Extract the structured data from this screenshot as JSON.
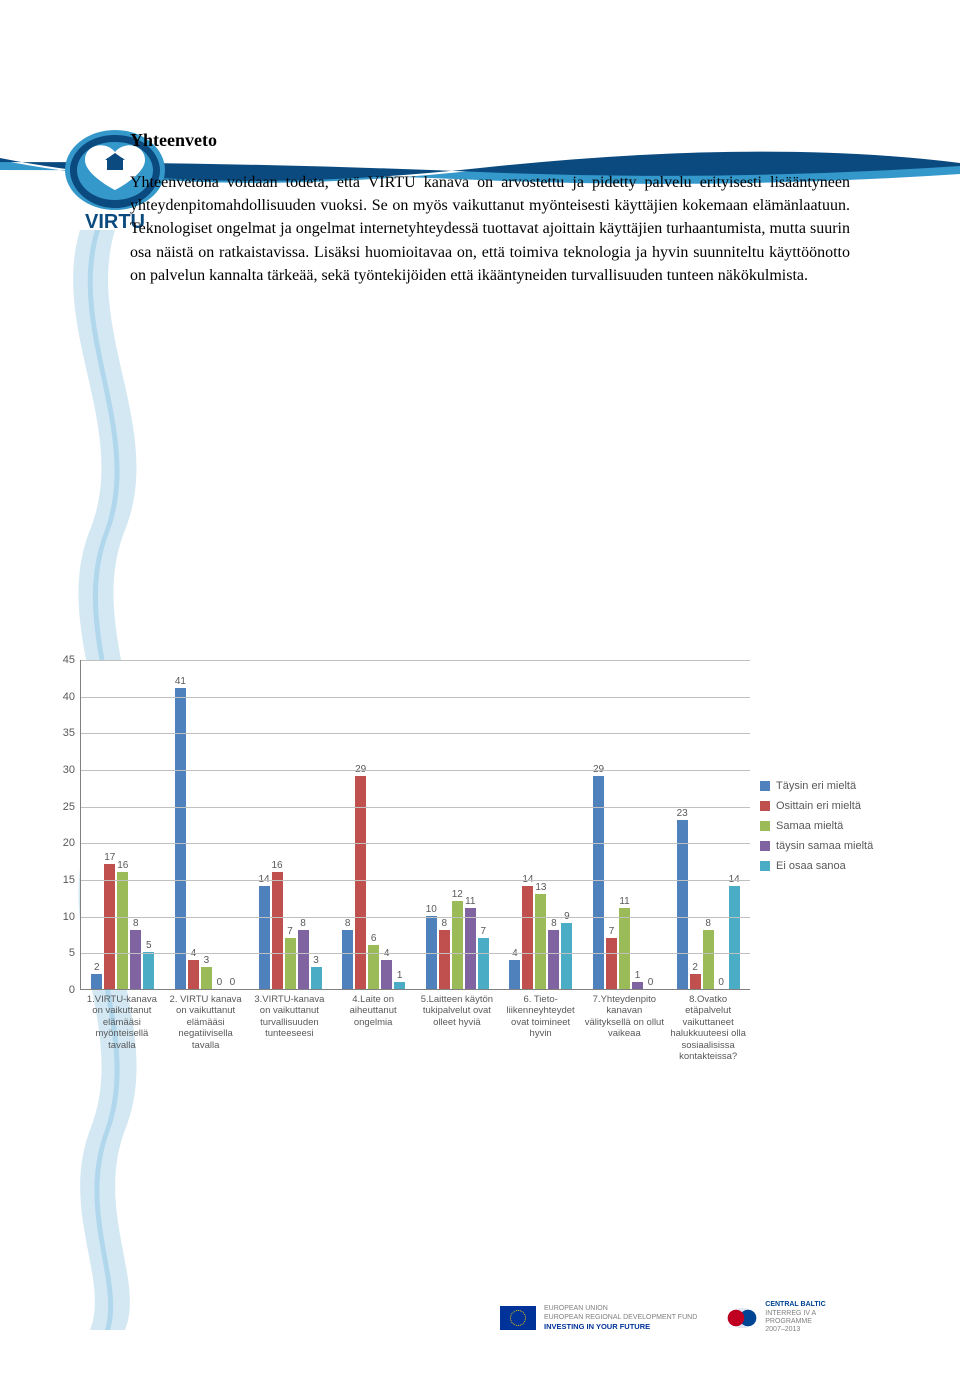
{
  "header": {
    "logo_text": "VIRTU"
  },
  "title": "Yhteenveto",
  "paragraph": "Yhteenvetona voidaan todeta, että VIRTU kanava on arvostettu ja pidetty palvelu erityisesti lisääntyneen yhteydenpitomahdollisuuden vuoksi. Se on myös vaikuttanut myönteisesti käyttäjien kokemaan elämänlaatuun. Teknologiset ongelmat ja ongelmat internetyhteydessä tuottavat ajoittain käyttäjien turhaantumista, mutta suurin osa näistä on ratkaistavissa. Lisäksi huomioitavaa on, että toimiva teknologia ja hyvin suunniteltu käyttöönotto on palvelun kannalta tärkeää, sekä työntekijöiden että ikääntyneiden turvallisuuden tunteen näkökulmista.",
  "chart": {
    "ymax": 45,
    "ytick_step": 5,
    "series_colors": [
      "#4f81bd",
      "#c0504d",
      "#9bbb59",
      "#8064a2",
      "#4bacc6"
    ],
    "series_labels": [
      "Täysin eri mieltä",
      "Osittain eri mieltä",
      "Samaa mieltä",
      "täysin samaa mieltä",
      "Ei osaa sanoa"
    ],
    "categories": [
      "1.VIRTU-kanava on vaikuttanut elämääsi myönteisellä tavalla",
      "2. VIRTU kanava on vaikuttanut elämääsi negatiivisella tavalla",
      "3.VIRTU-kanava on vaikuttanut turvallisuuden tunteeseesi",
      "4.Laite on aiheuttanut ongelmia",
      "5.Laitteen käytön tukipalvelut ovat olleet hyviä",
      "6. Tieto­liikenneyhteydet ovat toimineet hyvin",
      "7.Yhteydenpito kanavan välityksellä on ollut vaikeaa",
      "8.Ovatko etäpalvelut vaikuttaneet halukkuuteesi olla sosiaalisissa kontakteissa?"
    ],
    "values": [
      [
        2,
        17,
        16,
        8,
        5
      ],
      [
        41,
        4,
        3,
        0,
        0
      ],
      [
        14,
        16,
        7,
        8,
        3
      ],
      [
        8,
        29,
        6,
        4,
        1
      ],
      [
        10,
        8,
        12,
        11,
        7
      ],
      [
        4,
        14,
        13,
        8,
        9
      ],
      [
        29,
        7,
        11,
        1,
        0
      ],
      [
        23,
        2,
        8,
        0,
        14
      ]
    ]
  },
  "footer": {
    "eu_line1": "EUROPEAN UNION",
    "eu_line2": "EUROPEAN REGIONAL DEVELOPMENT FUND",
    "eu_line3": "INVESTING IN YOUR FUTURE",
    "cb_line1": "CENTRAL BALTIC",
    "cb_line2": "INTERREG IV A",
    "cb_line3": "PROGRAMME",
    "cb_line4": "2007–2013"
  }
}
